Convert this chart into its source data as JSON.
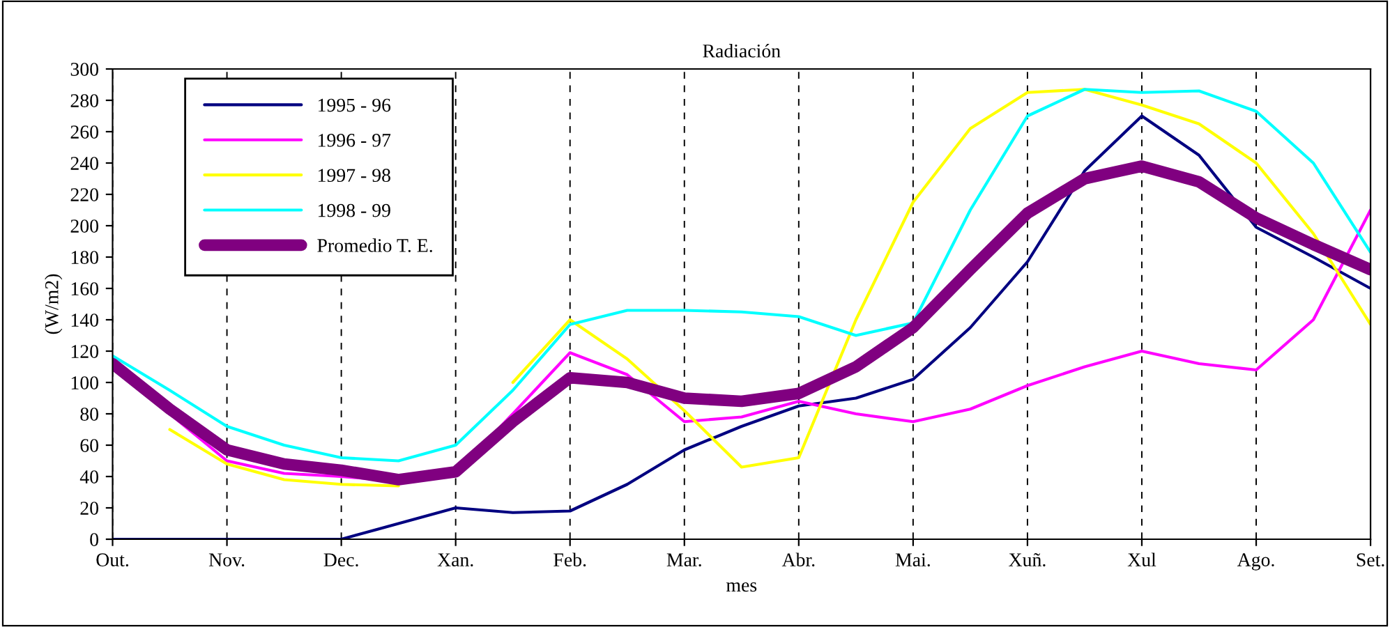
{
  "chart_data": {
    "type": "line",
    "title": "Radiación",
    "xlabel": "mes",
    "ylabel": "(W/m2)",
    "categories": [
      "Out.",
      null,
      "Nov.",
      null,
      "Dec.",
      null,
      "Xan.",
      null,
      "Feb.",
      null,
      "Mar.",
      null,
      "Abr.",
      null,
      "Mai.",
      null,
      "Xuñ.",
      null,
      "Xul",
      null,
      "Ago.",
      null,
      "Set."
    ],
    "ylim": [
      0,
      300
    ],
    "yticks": [
      0,
      20,
      40,
      60,
      80,
      100,
      120,
      140,
      160,
      180,
      200,
      220,
      240,
      260,
      280,
      300
    ],
    "grid": "x",
    "legend": "top left",
    "marker": "none",
    "series": [
      {
        "name": "1995 - 96",
        "color": "#000080",
        "values": [
          0,
          0,
          0,
          0,
          0,
          10,
          20,
          17,
          18,
          35,
          57,
          72,
          85,
          90,
          102,
          135,
          177,
          235,
          270,
          245,
          199,
          180,
          160
        ]
      },
      {
        "name": "1996 - 97",
        "color": "#ff00ff",
        "values": [
          110,
          80,
          50,
          42,
          40,
          37,
          42,
          80,
          119,
          105,
          75,
          78,
          88,
          80,
          75,
          83,
          98,
          110,
          120,
          112,
          108,
          140,
          210
        ]
      },
      {
        "name": "1997 - 98",
        "color": "#ffff00",
        "values": [
          null,
          70,
          48,
          38,
          35,
          34,
          null,
          100,
          140,
          115,
          82,
          46,
          52,
          140,
          215,
          262,
          285,
          287,
          277,
          265,
          240,
          195,
          137
        ]
      },
      {
        "name": "1998 - 99",
        "color": "#00ffff",
        "values": [
          117,
          95,
          72,
          60,
          52,
          50,
          60,
          95,
          137,
          146,
          146,
          145,
          142,
          130,
          138,
          210,
          270,
          287,
          285,
          286,
          273,
          240,
          183
        ]
      },
      {
        "name": "Promedio T. E.",
        "color": "#800080",
        "values": [
          112,
          83,
          57,
          48,
          44,
          38,
          43,
          75,
          103,
          100,
          90,
          88,
          93,
          110,
          135,
          172,
          208,
          230,
          238,
          228,
          205,
          188,
          172
        ]
      }
    ]
  }
}
